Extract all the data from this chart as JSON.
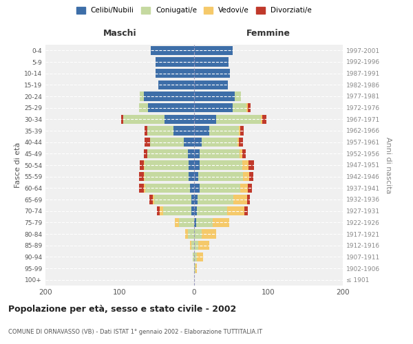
{
  "age_groups": [
    "100+",
    "95-99",
    "90-94",
    "85-89",
    "80-84",
    "75-79",
    "70-74",
    "65-69",
    "60-64",
    "55-59",
    "50-54",
    "45-49",
    "40-44",
    "35-39",
    "30-34",
    "25-29",
    "20-24",
    "15-19",
    "10-14",
    "5-9",
    "0-4"
  ],
  "birth_years": [
    "≤ 1901",
    "1902-1906",
    "1907-1911",
    "1912-1916",
    "1917-1921",
    "1922-1926",
    "1927-1931",
    "1932-1936",
    "1937-1941",
    "1942-1946",
    "1947-1951",
    "1952-1956",
    "1957-1961",
    "1962-1966",
    "1967-1971",
    "1972-1976",
    "1977-1981",
    "1982-1986",
    "1987-1991",
    "1992-1996",
    "1997-2001"
  ],
  "male": {
    "celibi": [
      0,
      0,
      0,
      0,
      0,
      0,
      4,
      4,
      6,
      7,
      7,
      8,
      14,
      28,
      40,
      62,
      68,
      48,
      52,
      52,
      58
    ],
    "coniugati": [
      0,
      0,
      2,
      4,
      8,
      20,
      38,
      50,
      60,
      60,
      60,
      55,
      45,
      35,
      55,
      12,
      5,
      0,
      0,
      0,
      0
    ],
    "vedovi": [
      0,
      0,
      0,
      2,
      4,
      6,
      4,
      2,
      2,
      1,
      1,
      0,
      0,
      0,
      0,
      0,
      0,
      0,
      0,
      0,
      0
    ],
    "divorziati": [
      0,
      0,
      0,
      0,
      0,
      0,
      4,
      4,
      6,
      6,
      5,
      5,
      8,
      4,
      3,
      0,
      0,
      0,
      0,
      0,
      0
    ]
  },
  "female": {
    "nubili": [
      0,
      0,
      0,
      0,
      0,
      3,
      4,
      5,
      7,
      6,
      7,
      7,
      10,
      20,
      30,
      52,
      55,
      45,
      48,
      46,
      52
    ],
    "coniugate": [
      0,
      2,
      4,
      6,
      10,
      22,
      40,
      48,
      55,
      60,
      58,
      54,
      48,
      40,
      60,
      18,
      8,
      0,
      0,
      0,
      0
    ],
    "vedove": [
      0,
      2,
      8,
      14,
      20,
      22,
      24,
      18,
      10,
      8,
      8,
      4,
      2,
      2,
      2,
      2,
      0,
      0,
      0,
      0,
      0
    ],
    "divorziate": [
      0,
      0,
      0,
      0,
      0,
      0,
      4,
      4,
      6,
      6,
      8,
      4,
      6,
      5,
      5,
      4,
      0,
      0,
      0,
      0,
      0
    ]
  },
  "colors": {
    "celibi": "#3d6ea8",
    "coniugati": "#c5d9a0",
    "vedovi": "#f5c96a",
    "divorziati": "#c0392b"
  },
  "title": "Popolazione per età, sesso e stato civile - 2002",
  "subtitle": "COMUNE DI ORNAVASSO (VB) - Dati ISTAT 1° gennaio 2002 - Elaborazione TUTTITALIA.IT",
  "ylabel_left": "Fasce di età",
  "ylabel_right": "Anni di nascita",
  "xlabel_left": "Maschi",
  "xlabel_right": "Femmine",
  "xlim": 200,
  "bg_color": "#ffffff",
  "plot_bg": "#f0f0f0"
}
